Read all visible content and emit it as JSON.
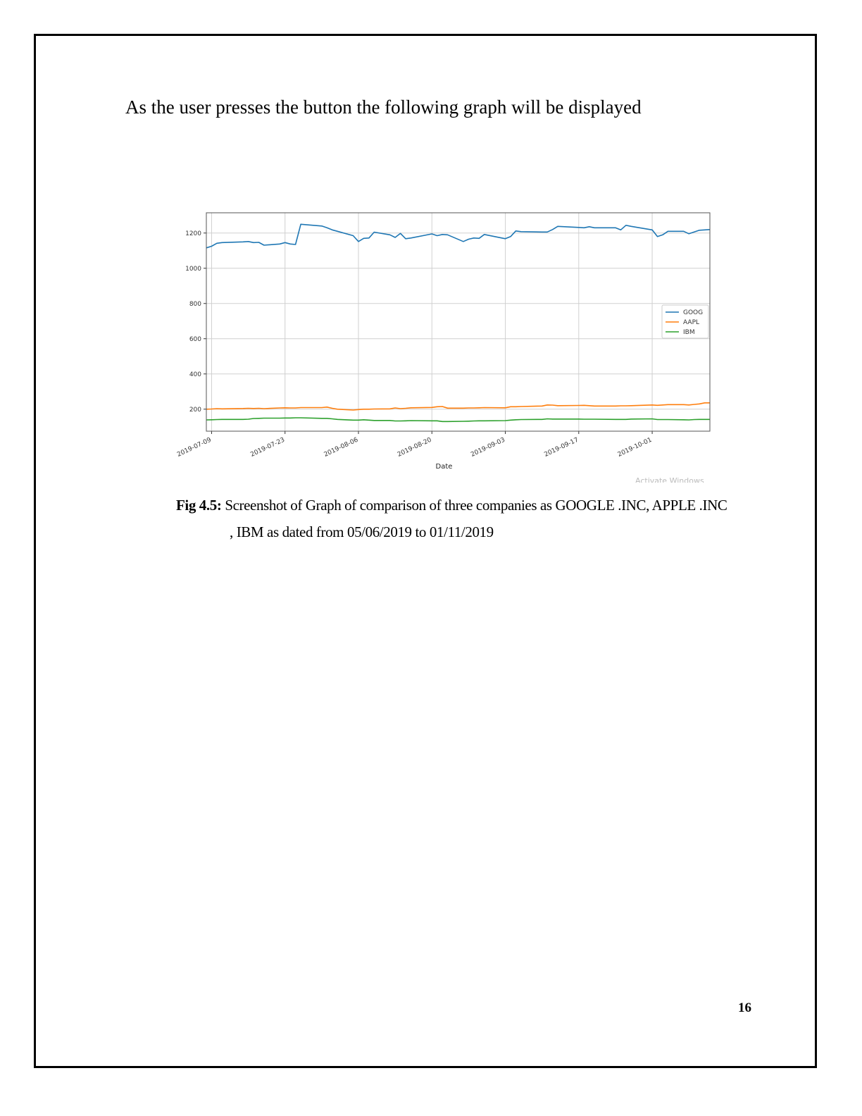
{
  "intro_text": "As the user presses the button the following graph will be displayed",
  "caption": {
    "label": "Fig 4.5:",
    "line1": " Screenshot of Graph of comparison of three companies as GOOGLE .INC, APPLE .INC",
    "line2": ", IBM as dated from 05/06/2019 to 01/11/2019"
  },
  "page_number": "16",
  "watermark": "Activate Windows",
  "chart_data": {
    "type": "line",
    "xlabel": "Date",
    "ylabel": "",
    "title": "",
    "x_start": "2019-07-08",
    "x_end": "2019-10-12",
    "ylim": [
      75,
      1315
    ],
    "y_ticks": [
      200,
      400,
      600,
      800,
      1000,
      1200
    ],
    "x_ticks": [
      "2019-07-09",
      "2019-07-23",
      "2019-08-06",
      "2019-08-20",
      "2019-09-03",
      "2019-09-17",
      "2019-10-01"
    ],
    "grid": true,
    "legend_position": "center-right",
    "x": [
      "2019-07-08",
      "2019-07-09",
      "2019-07-10",
      "2019-07-11",
      "2019-07-15",
      "2019-07-16",
      "2019-07-17",
      "2019-07-18",
      "2019-07-19",
      "2019-07-22",
      "2019-07-23",
      "2019-07-24",
      "2019-07-25",
      "2019-07-26",
      "2019-07-30",
      "2019-07-31",
      "2019-08-01",
      "2019-08-02",
      "2019-08-05",
      "2019-08-06",
      "2019-08-07",
      "2019-08-08",
      "2019-08-09",
      "2019-08-12",
      "2019-08-13",
      "2019-08-14",
      "2019-08-15",
      "2019-08-16",
      "2019-08-20",
      "2019-08-21",
      "2019-08-22",
      "2019-08-23",
      "2019-08-26",
      "2019-08-27",
      "2019-08-28",
      "2019-08-29",
      "2019-08-30",
      "2019-09-03",
      "2019-09-04",
      "2019-09-05",
      "2019-09-06",
      "2019-09-10",
      "2019-09-11",
      "2019-09-12",
      "2019-09-13",
      "2019-09-17",
      "2019-09-18",
      "2019-09-19",
      "2019-09-20",
      "2019-09-24",
      "2019-09-25",
      "2019-09-26",
      "2019-09-27",
      "2019-10-01",
      "2019-10-02",
      "2019-10-03",
      "2019-10-04",
      "2019-10-07",
      "2019-10-08",
      "2019-10-09",
      "2019-10-10",
      "2019-10-11",
      "2019-10-12"
    ],
    "series": [
      {
        "name": "GOOG",
        "color": "#1f77b4",
        "values": [
          1116,
          1125,
          1142,
          1146,
          1150,
          1152,
          1146,
          1147,
          1131,
          1138,
          1146,
          1138,
          1135,
          1250,
          1240,
          1230,
          1218,
          1210,
          1185,
          1152,
          1170,
          1172,
          1205,
          1190,
          1175,
          1198,
          1168,
          1172,
          1195,
          1185,
          1192,
          1190,
          1152,
          1165,
          1172,
          1170,
          1192,
          1168,
          1180,
          1212,
          1208,
          1206,
          1206,
          1220,
          1238,
          1232,
          1230,
          1236,
          1230,
          1230,
          1218,
          1244,
          1238,
          1218,
          1180,
          1190,
          1210,
          1210,
          1196,
          1206,
          1216,
          1218,
          1220
        ]
      },
      {
        "name": "AAPL",
        "color": "#ff7f0e",
        "values": [
          200,
          201,
          203,
          202,
          204,
          205,
          204,
          205,
          203,
          207,
          208,
          207,
          207,
          209,
          209,
          212,
          205,
          200,
          195,
          198,
          200,
          200,
          201,
          202,
          207,
          203,
          205,
          208,
          210,
          214,
          215,
          206,
          206,
          207,
          207,
          208,
          209,
          208,
          214,
          214,
          215,
          218,
          224,
          223,
          220,
          221,
          222,
          220,
          218,
          218,
          219,
          219,
          220,
          224,
          222,
          224,
          226,
          226,
          224,
          227,
          230,
          236,
          236
        ]
      },
      {
        "name": "IBM",
        "color": "#2ca02c",
        "values": [
          139,
          140,
          141,
          142,
          142,
          143,
          147,
          148,
          149,
          149,
          150,
          150,
          151,
          151,
          148,
          148,
          145,
          142,
          138,
          138,
          140,
          138,
          136,
          136,
          133,
          133,
          134,
          135,
          134,
          134,
          130,
          130,
          131,
          132,
          133,
          134,
          134,
          135,
          138,
          140,
          141,
          142,
          145,
          144,
          144,
          144,
          143,
          143,
          143,
          142,
          142,
          142,
          144,
          145,
          141,
          141,
          141,
          140,
          139,
          141,
          142,
          142,
          142
        ]
      }
    ]
  }
}
